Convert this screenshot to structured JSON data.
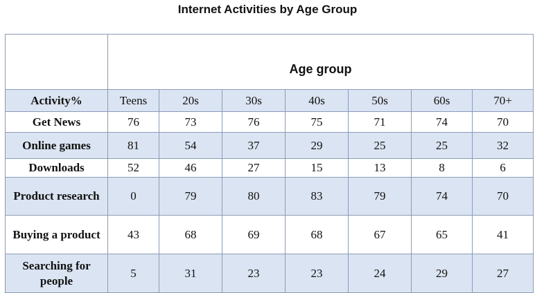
{
  "title": "Internet Activities  by Age Group",
  "chart_data": {
    "type": "table",
    "title": "Internet Activities  by Age Group",
    "column_group_label": "Age group",
    "row_header_label": "Activity%",
    "columns": [
      "Teens",
      "20s",
      "30s",
      "40s",
      "50s",
      "60s",
      "70+"
    ],
    "rows": [
      {
        "label": "Get News",
        "values": [
          76,
          73,
          76,
          75,
          71,
          74,
          70
        ]
      },
      {
        "label": "Online games",
        "values": [
          81,
          54,
          37,
          29,
          25,
          25,
          32
        ]
      },
      {
        "label": "Downloads",
        "values": [
          52,
          46,
          27,
          15,
          13,
          8,
          6
        ]
      },
      {
        "label": "Product research",
        "values": [
          0,
          79,
          80,
          83,
          79,
          74,
          70
        ]
      },
      {
        "label": "Buying a product",
        "values": [
          43,
          68,
          69,
          68,
          67,
          65,
          41
        ]
      },
      {
        "label": "Searching for people",
        "values": [
          5,
          31,
          23,
          23,
          24,
          29,
          27
        ]
      }
    ],
    "colors": {
      "shaded_row": "#dbe4f2",
      "plain_row": "#ffffff",
      "border": "#8a9bb8"
    }
  }
}
